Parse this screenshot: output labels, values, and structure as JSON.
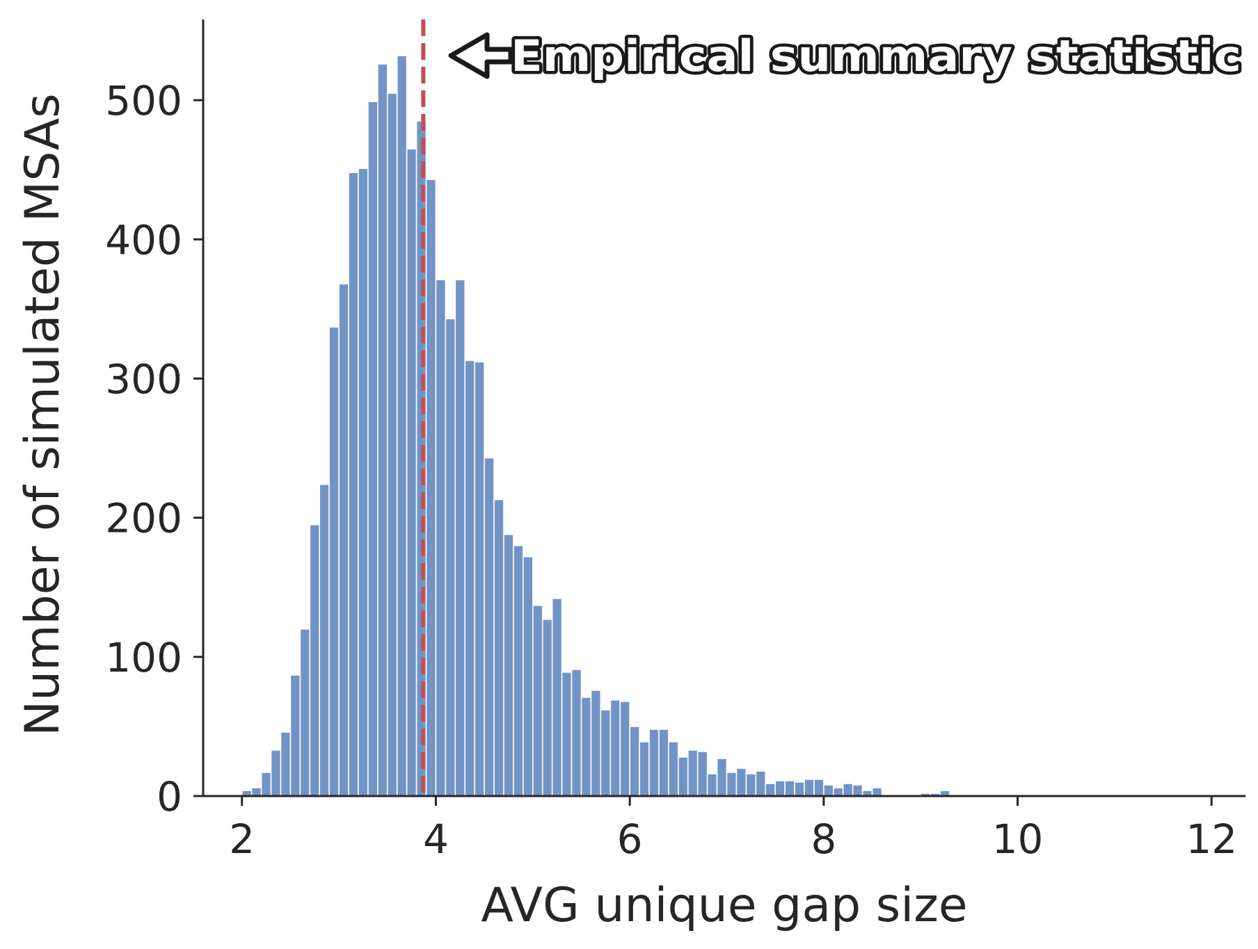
{
  "chart_data": {
    "type": "bar",
    "subtype": "histogram",
    "title": "",
    "xlabel": "AVG unique gap size",
    "ylabel": "Number of simulated MSAs",
    "xlim": [
      1.6,
      12.35
    ],
    "ylim": [
      0,
      558
    ],
    "xticks": [
      2,
      4,
      6,
      8,
      10,
      12
    ],
    "yticks": [
      0,
      100,
      200,
      300,
      400,
      500
    ],
    "bin_start": 2.0,
    "bin_width": 0.1,
    "values": [
      4,
      6,
      17,
      33,
      46,
      87,
      120,
      195,
      224,
      337,
      368,
      448,
      451,
      499,
      526,
      505,
      532,
      465,
      485,
      443,
      371,
      343,
      371,
      313,
      312,
      243,
      213,
      188,
      180,
      172,
      137,
      127,
      142,
      89,
      91,
      71,
      76,
      62,
      69,
      68,
      50,
      39,
      48,
      48,
      39,
      28,
      33,
      32,
      16,
      27,
      17,
      20,
      16,
      18,
      9,
      11,
      11,
      10,
      12,
      12,
      8,
      6,
      9,
      8,
      4,
      6,
      1,
      1,
      1,
      1,
      2,
      2,
      4,
      1,
      1,
      0,
      0,
      0,
      0,
      0,
      0,
      0,
      0,
      0,
      0,
      1,
      1,
      1,
      1,
      1,
      0,
      0,
      0,
      0,
      0,
      0,
      0,
      0,
      0,
      0
    ],
    "bar_color": "#7293c6",
    "grid": false,
    "reference_line": {
      "x": 3.87,
      "color": "#c44e52",
      "style": "dashed"
    },
    "annotation": {
      "text": "Empirical summary statistic",
      "arrow": "left"
    }
  }
}
